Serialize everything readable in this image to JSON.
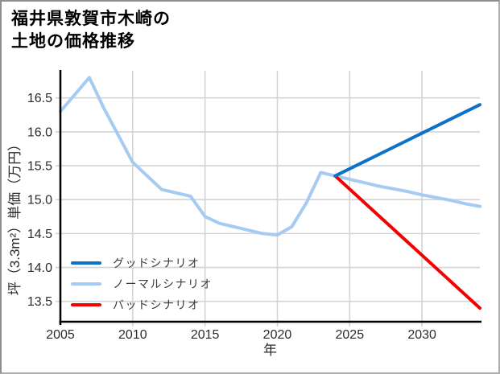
{
  "title": {
    "line1": "福井県敦賀市木崎の",
    "line2": "土地の価格推移"
  },
  "axes": {
    "x": {
      "label": "年",
      "ticks": [
        "2005",
        "2010",
        "2015",
        "2020",
        "2025",
        "2030"
      ],
      "tick_values": [
        2005,
        2010,
        2015,
        2020,
        2025,
        2030
      ]
    },
    "y": {
      "label": "坪（3.3m²）単価（万円）",
      "ticks": [
        "16.5",
        "16.0",
        "15.5",
        "15.0",
        "14.5",
        "14.0",
        "13.5"
      ],
      "tick_values": [
        16.5,
        16.0,
        15.5,
        15.0,
        14.5,
        14.0,
        13.5
      ]
    }
  },
  "legend": {
    "items": [
      {
        "label": "グッドシナリオ",
        "color": "#0B72C8"
      },
      {
        "label": "ノーマルシナリオ",
        "color": "#A6CBF2"
      },
      {
        "label": "バッドシナリオ",
        "color": "#F50000"
      }
    ]
  },
  "colors": {
    "background": "#FFFFFF",
    "grid": "#D4D4D4",
    "spine": "#000000",
    "tick_label": "#2B2B2B",
    "good": "#0B72C8",
    "normal": "#A6CBF2",
    "bad": "#F50000"
  },
  "chart_data": {
    "type": "line",
    "title": "福井県敦賀市木崎の土地の価格推移",
    "xlabel": "年",
    "ylabel": "坪（3.3m²）単価（万円）",
    "xlim": [
      2005,
      2034
    ],
    "ylim": [
      13.2,
      16.9
    ],
    "grid": true,
    "legend_position": "lower-left",
    "series": [
      {
        "name": "ノーマルシナリオ",
        "color": "#A6CBF2",
        "x": [
          2005,
          2006,
          2007,
          2008,
          2009,
          2010,
          2011,
          2012,
          2013,
          2014,
          2015,
          2016,
          2017,
          2018,
          2019,
          2020,
          2021,
          2022,
          2023,
          2024,
          2025,
          2026,
          2027,
          2028,
          2029,
          2030,
          2031,
          2032,
          2033,
          2034
        ],
        "y": [
          16.3,
          16.55,
          16.8,
          16.35,
          15.95,
          15.55,
          15.35,
          15.15,
          15.1,
          15.05,
          14.75,
          14.65,
          14.6,
          14.55,
          14.5,
          14.48,
          14.6,
          14.95,
          15.4,
          15.35,
          15.3,
          15.25,
          15.2,
          15.16,
          15.12,
          15.07,
          15.03,
          14.99,
          14.94,
          14.9
        ]
      },
      {
        "name": "バッドシナリオ",
        "color": "#F50000",
        "x": [
          2024,
          2034
        ],
        "y": [
          15.35,
          13.4
        ]
      },
      {
        "name": "グッドシナリオ",
        "color": "#0B72C8",
        "x": [
          2024,
          2034
        ],
        "y": [
          15.35,
          16.4
        ]
      }
    ]
  }
}
